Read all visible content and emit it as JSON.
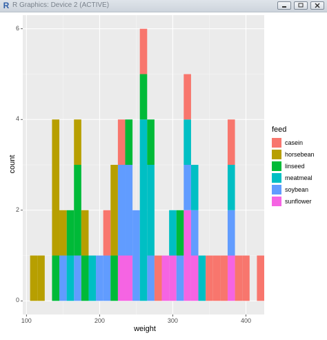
{
  "window": {
    "title": "R Graphics: Device 2 (ACTIVE)",
    "app_icon": "R-logo-icon",
    "buttons": [
      "minimize-icon",
      "restore-icon",
      "close-icon"
    ]
  },
  "chart_data": {
    "type": "bar",
    "xlabel": "weight",
    "ylabel": "count",
    "xlim": [
      95,
      425
    ],
    "ylim": [
      -0.3,
      6.3
    ],
    "x_ticks": [
      100,
      200,
      300,
      400
    ],
    "y_ticks": [
      0,
      2,
      4,
      6
    ],
    "bin_width": 10,
    "stacked": true,
    "grid": true,
    "legend": {
      "title": "feed",
      "position": "right"
    },
    "series": [
      {
        "name": "casein",
        "color": "#F8766D",
        "bins": [
          [
            205,
            215,
            1
          ],
          [
            225,
            235,
            1
          ],
          [
            255,
            265,
            1
          ],
          [
            275,
            285,
            1
          ],
          [
            315,
            325,
            1
          ],
          [
            345,
            405,
            1
          ],
          [
            415,
            425,
            1
          ]
        ]
      },
      {
        "name": "horsebean",
        "color": "#B79F00",
        "bins": [
          [
            105,
            125,
            1
          ],
          [
            135,
            145,
            3
          ],
          [
            145,
            155,
            1
          ],
          [
            165,
            185,
            1
          ],
          [
            215,
            225,
            2
          ]
        ]
      },
      {
        "name": "linseed",
        "color": "#00BA38",
        "bins": [
          [
            135,
            145,
            1
          ],
          [
            155,
            165,
            1
          ],
          [
            165,
            175,
            2
          ],
          [
            175,
            185,
            1
          ],
          [
            215,
            225,
            1
          ],
          [
            235,
            245,
            1
          ],
          [
            255,
            265,
            1
          ],
          [
            265,
            275,
            1
          ],
          [
            305,
            315,
            1
          ]
        ]
      },
      {
        "name": "meatmeal",
        "color": "#00BFC4",
        "bins": [
          [
            155,
            165,
            1
          ],
          [
            185,
            195,
            1
          ],
          [
            255,
            265,
            4
          ],
          [
            265,
            275,
            2
          ],
          [
            295,
            305,
            1
          ],
          [
            315,
            325,
            1
          ],
          [
            325,
            335,
            1
          ],
          [
            335,
            345,
            1
          ],
          [
            375,
            385,
            1
          ]
        ]
      },
      {
        "name": "soybean",
        "color": "#619CFF",
        "bins": [
          [
            145,
            155,
            1
          ],
          [
            165,
            175,
            1
          ],
          [
            195,
            205,
            1
          ],
          [
            205,
            215,
            1
          ],
          [
            225,
            245,
            2
          ],
          [
            245,
            255,
            2
          ],
          [
            265,
            275,
            1
          ],
          [
            305,
            315,
            1
          ],
          [
            315,
            325,
            1
          ],
          [
            325,
            335,
            1
          ],
          [
            375,
            385,
            1
          ]
        ]
      },
      {
        "name": "sunflower",
        "color": "#F564E3",
        "bins": [
          [
            225,
            235,
            1
          ],
          [
            235,
            245,
            1
          ],
          [
            285,
            295,
            1
          ],
          [
            295,
            305,
            1
          ],
          [
            315,
            325,
            2
          ],
          [
            325,
            335,
            1
          ],
          [
            375,
            385,
            1
          ]
        ]
      }
    ]
  }
}
